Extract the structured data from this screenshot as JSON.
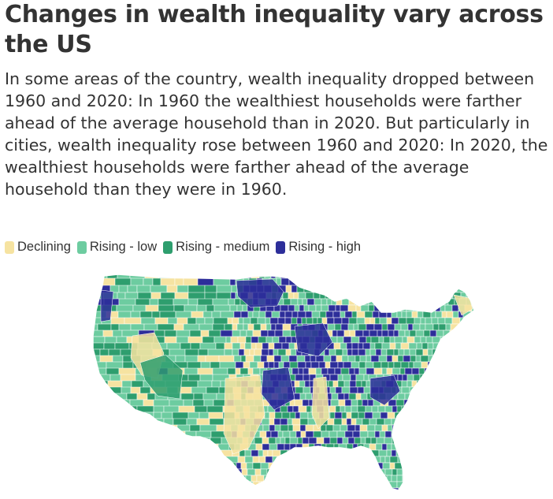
{
  "header": {
    "title": "Changes in wealth inequality vary across the US",
    "subtitle": "In some areas of the country, wealth inequality dropped between 1960 and 2020: In 1960 the wealthiest households were farther ahead of the average household than in 2020. But particularly in cities, wealth inequality rose between 1960 and 2020: In 2020, the wealthiest households were farther ahead of the average household than they were in 1960."
  },
  "legend": {
    "items": [
      {
        "label": "Declining",
        "color": "#f6e3a1"
      },
      {
        "label": "Rising - low",
        "color": "#6dcca0"
      },
      {
        "label": "Rising - medium",
        "color": "#2e9e6e"
      },
      {
        "label": "Rising - high",
        "color": "#2d2e9a"
      }
    ]
  },
  "map": {
    "colors": {
      "declining": "#f6e3a1",
      "rising_low": "#6dcca0",
      "rising_medium": "#2e9e6e",
      "rising_high": "#2d2e9a",
      "border": "#ffffff"
    }
  }
}
